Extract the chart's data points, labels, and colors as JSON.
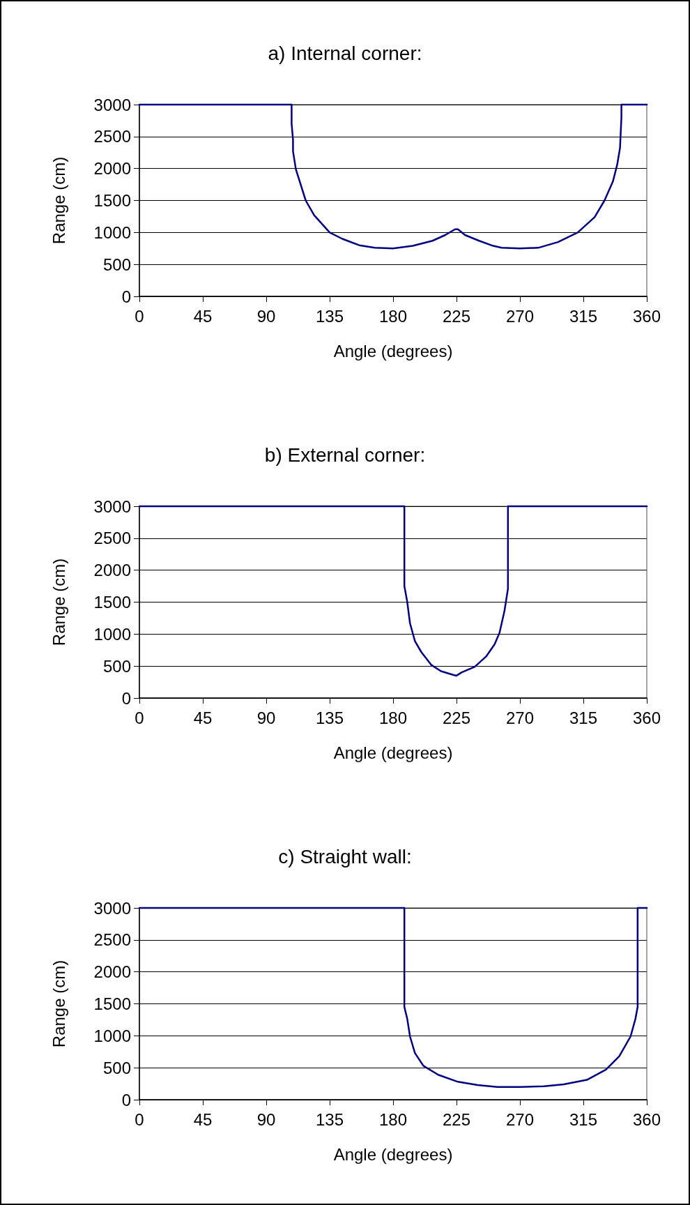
{
  "chart_data": [
    {
      "type": "line",
      "title": "a) Internal corner:",
      "xlabel": "Angle (degrees)",
      "ylabel": "Range (cm)",
      "xlim": [
        0,
        360
      ],
      "xticks": [
        0,
        45,
        90,
        135,
        180,
        225,
        270,
        315,
        360
      ],
      "ylim": [
        0,
        3000
      ],
      "yticks": [
        0,
        500,
        1000,
        1500,
        2000,
        2500,
        3000
      ],
      "grid": "y",
      "marker": "none",
      "line_style": "solid",
      "series": [
        {
          "color": "#000080",
          "x": [
            0,
            108,
            108,
            109,
            109,
            111,
            118,
            124,
            135,
            144,
            156,
            167,
            180,
            194,
            208,
            217,
            224,
            226,
            231,
            241,
            251,
            257,
            270,
            283,
            297,
            311,
            323,
            330,
            336,
            339,
            341,
            342,
            342,
            360
          ],
          "values": [
            3000,
            3000,
            2700,
            2450,
            2270,
            1990,
            1500,
            1270,
            1000,
            900,
            800,
            760,
            750,
            790,
            870,
            960,
            1050,
            1050,
            960,
            870,
            790,
            760,
            750,
            760,
            850,
            1000,
            1240,
            1500,
            1800,
            2060,
            2320,
            2800,
            3000,
            3000
          ]
        }
      ]
    },
    {
      "type": "line",
      "title": "b) External corner:",
      "xlabel": "Angle (degrees)",
      "ylabel": "Range (cm)",
      "xlim": [
        0,
        360
      ],
      "xticks": [
        0,
        45,
        90,
        135,
        180,
        225,
        270,
        315,
        360
      ],
      "ylim": [
        0,
        3000
      ],
      "yticks": [
        0,
        500,
        1000,
        1500,
        2000,
        2500,
        3000
      ],
      "grid": "y",
      "marker": "none",
      "line_style": "solid",
      "series": [
        {
          "color": "#000080",
          "x": [
            0,
            188,
            188,
            190,
            192,
            195.5,
            200,
            207,
            214,
            223,
            225,
            228.5,
            238,
            246,
            252,
            255.5,
            259,
            261.5,
            261.5,
            360
          ],
          "values": [
            3000,
            3000,
            1750,
            1510,
            1170,
            890,
            720,
            520,
            420,
            360,
            350,
            400,
            490,
            650,
            840,
            1020,
            1360,
            1710,
            3000,
            3000
          ]
        }
      ]
    },
    {
      "type": "line",
      "title": "c) Straight wall:",
      "xlabel": "Angle (degrees)",
      "ylabel": "Range (cm)",
      "xlim": [
        0,
        360
      ],
      "xticks": [
        0,
        45,
        90,
        135,
        180,
        225,
        270,
        315,
        360
      ],
      "ylim": [
        0,
        3000
      ],
      "yticks": [
        0,
        500,
        1000,
        1500,
        2000,
        2500,
        3000
      ],
      "grid": "y",
      "marker": "none",
      "line_style": "solid",
      "series": [
        {
          "color": "#000080",
          "x": [
            0,
            188,
            188,
            190,
            192,
            195.5,
            201.5,
            212,
            226,
            240,
            254,
            270,
            287,
            301,
            317.5,
            331,
            340.5,
            348.5,
            352,
            353.5,
            353.5,
            360
          ],
          "values": [
            3000,
            3000,
            1450,
            1270,
            990,
            730,
            530,
            390,
            280,
            230,
            200,
            200,
            210,
            240,
            310,
            470,
            680,
            990,
            1270,
            1450,
            3000,
            3000
          ]
        }
      ]
    }
  ]
}
